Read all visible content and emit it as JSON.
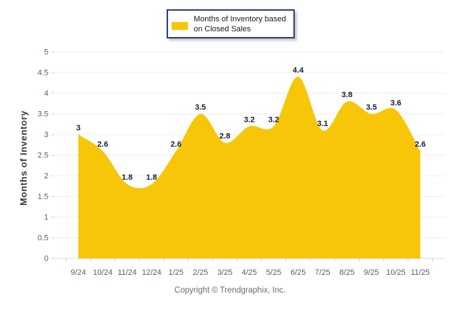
{
  "chart_data": {
    "type": "area",
    "title": "",
    "legend_label": "Months of Inventory based on Closed Sales",
    "categories": [
      "9/24",
      "10/24",
      "11/24",
      "12/24",
      "1/25",
      "2/25",
      "3/25",
      "4/25",
      "5/25",
      "6/25",
      "7/25",
      "8/25",
      "9/25",
      "10/25",
      "11/25"
    ],
    "values": [
      3,
      2.6,
      1.8,
      1.8,
      2.6,
      3.5,
      2.8,
      3.2,
      3.2,
      4.4,
      3.1,
      3.8,
      3.5,
      3.6,
      2.6
    ],
    "point_labels": [
      "3",
      "2.6",
      "1.8",
      "1.8",
      "2.6",
      "3.5",
      "2.8",
      "3.2",
      "3.2",
      "4.4",
      "3.1",
      "3.8",
      "3.5",
      "3.6",
      "2.6"
    ],
    "xlabel": "",
    "ylabel": "Months of Inventory",
    "ylim": [
      0,
      5
    ],
    "ytick_step": 0.5,
    "ytick_labels": [
      "0",
      "0.5",
      "1",
      "1.5",
      "2",
      "2.5",
      "3",
      "3.5",
      "4",
      "4.5",
      "5"
    ],
    "grid": true,
    "legend_position": "top",
    "smoothing": "spline",
    "colors": {
      "area_fill": "#F7C608",
      "grid_line": "#ededed",
      "zero_axis_line": "#d8d8d8",
      "tick_mark": "#c9c9c9",
      "axis_text": "#53606f",
      "value_label_text": "#161c2d",
      "legend_border": "#24417F"
    }
  },
  "legend": {
    "line1": "Months of Inventory based",
    "line2": "on Closed Sales"
  },
  "footer": {
    "copyright": "Copyright © Trendgraphix, Inc."
  }
}
